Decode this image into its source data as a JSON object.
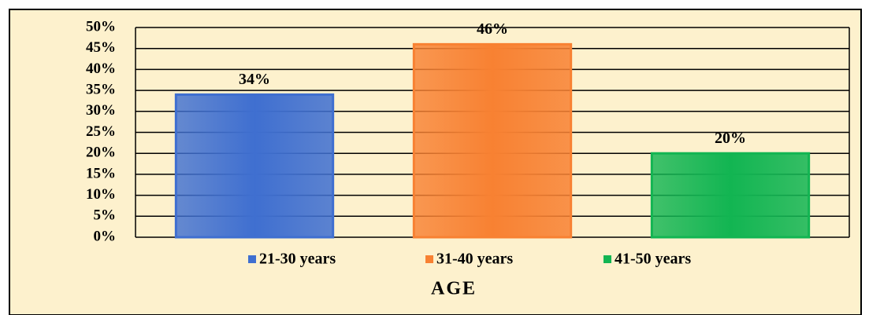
{
  "chart_data": {
    "type": "bar",
    "x_label": "AGE",
    "categories": [
      "21-30 years",
      "31-40 years",
      "41-50 years"
    ],
    "values": [
      34,
      46,
      20
    ],
    "value_labels": [
      "34%",
      "46%",
      "20%"
    ],
    "colors": [
      "#3f6fd0",
      "#f88132",
      "#12b552"
    ],
    "ylim": [
      0,
      50
    ],
    "yticks": [
      {
        "value": 0,
        "label": "0%"
      },
      {
        "value": 5,
        "label": "5%"
      },
      {
        "value": 10,
        "label": "10%"
      },
      {
        "value": 15,
        "label": "15%"
      },
      {
        "value": 20,
        "label": "20%"
      },
      {
        "value": 25,
        "label": "25%"
      },
      {
        "value": 30,
        "label": "30%"
      },
      {
        "value": 35,
        "label": "35%"
      },
      {
        "value": 40,
        "label": "40%"
      },
      {
        "value": 45,
        "label": "45%"
      },
      {
        "value": 50,
        "label": "50%"
      }
    ],
    "grid": true,
    "legend": "bottom"
  }
}
